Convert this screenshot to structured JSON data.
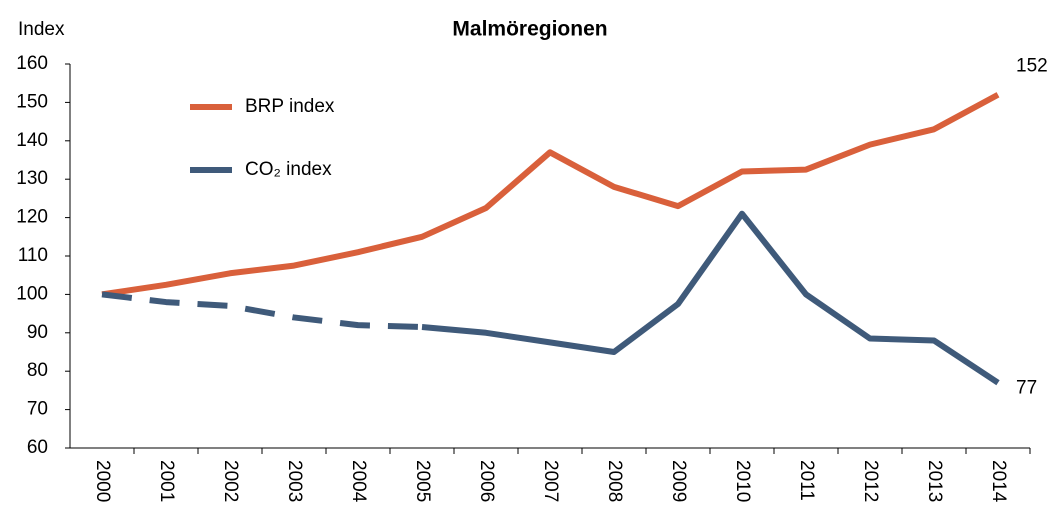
{
  "chart_data": {
    "type": "line",
    "title": "Malmöregionen",
    "y_label": "Index",
    "categories": [
      "2000",
      "2001",
      "2002",
      "2003",
      "2004",
      "2005",
      "2006",
      "2007",
      "2008",
      "2009",
      "2010",
      "2011",
      "2012",
      "2013",
      "2014"
    ],
    "series": [
      {
        "name": "BRP index",
        "color": "#d9603b",
        "values": [
          100,
          102.5,
          105.5,
          107.5,
          111,
          115,
          122.5,
          137,
          128,
          123,
          132,
          132.5,
          139,
          143,
          152
        ]
      },
      {
        "name": "CO₂ index",
        "color": "#3f5a7a",
        "dashed_until": "2005",
        "values": [
          100,
          98,
          97,
          94,
          92,
          91.5,
          90,
          87.5,
          85,
          97.5,
          121,
          100,
          88.5,
          88,
          77
        ]
      }
    ],
    "end_labels": true,
    "ylim": [
      60,
      160
    ],
    "yticks": [
      60,
      70,
      80,
      90,
      100,
      110,
      120,
      130,
      140,
      150,
      160
    ],
    "grid": false,
    "legend": "upper left"
  }
}
